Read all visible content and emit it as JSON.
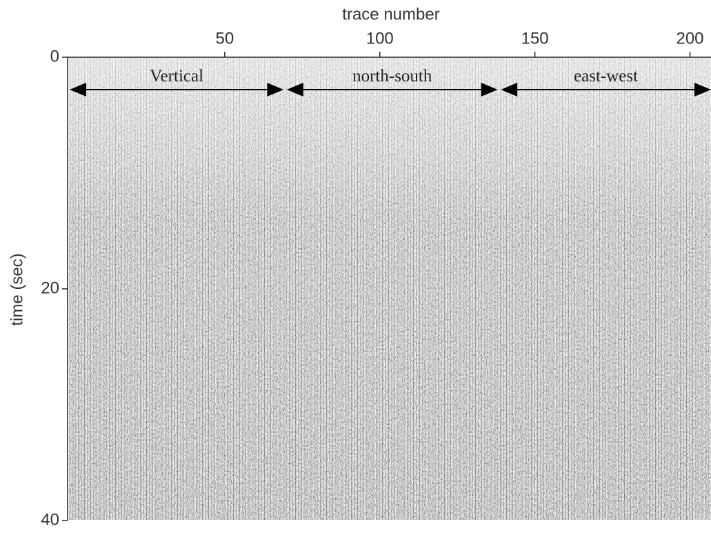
{
  "chart_data": {
    "type": "seismogram",
    "x_label": "trace number",
    "y_label": "time (sec)",
    "xlim": [
      0,
      207
    ],
    "xticks": [
      50,
      100,
      150,
      200
    ],
    "ylim": [
      0,
      40
    ],
    "yticks": [
      0,
      20,
      40
    ],
    "y_inverted": true,
    "x_axis_position": "top",
    "annotations": [
      {
        "text": "Vertical",
        "x": [
          0,
          69
        ],
        "y": 2.8
      },
      {
        "text": "north-south",
        "x": [
          70,
          138
        ],
        "y": 2.8
      },
      {
        "text": "east-west",
        "x": [
          139,
          207
        ],
        "y": 2.8
      }
    ]
  }
}
